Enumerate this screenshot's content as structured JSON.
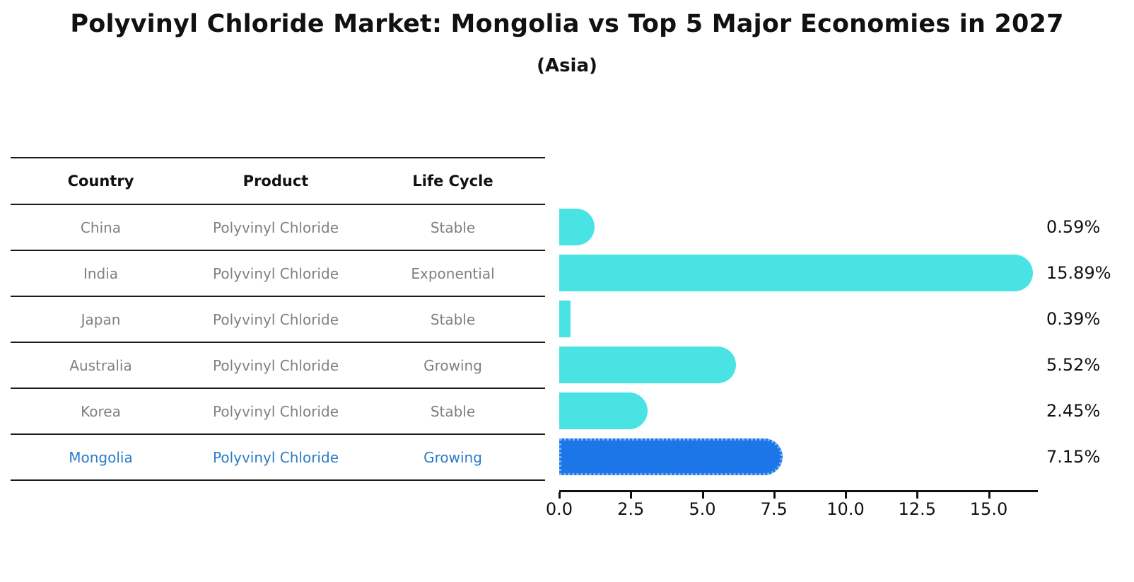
{
  "title": "Polyvinyl Chloride Market: Mongolia vs Top 5 Major Economies in 2027",
  "subtitle": "(Asia)",
  "table": {
    "headers": [
      "Country",
      "Product",
      "Life Cycle"
    ],
    "rows": [
      {
        "country": "China",
        "product": "Polyvinyl Chloride",
        "life_cycle": "Stable",
        "highlight": false
      },
      {
        "country": "India",
        "product": "Polyvinyl Chloride",
        "life_cycle": "Exponential",
        "highlight": false
      },
      {
        "country": "Japan",
        "product": "Polyvinyl Chloride",
        "life_cycle": "Stable",
        "highlight": false
      },
      {
        "country": "Australia",
        "product": "Polyvinyl Chloride",
        "life_cycle": "Growing",
        "highlight": false
      },
      {
        "country": "Korea",
        "product": "Polyvinyl Chloride",
        "life_cycle": "Stable",
        "highlight": false
      },
      {
        "country": "Mongolia",
        "product": "Polyvinyl Chloride",
        "life_cycle": "Growing",
        "highlight": true
      }
    ]
  },
  "chart_data": {
    "type": "bar",
    "orientation": "horizontal",
    "categories": [
      "China",
      "India",
      "Japan",
      "Australia",
      "Korea",
      "Mongolia"
    ],
    "values": [
      0.59,
      15.89,
      0.39,
      5.52,
      2.45,
      7.15
    ],
    "labels": [
      "0.59%",
      "15.89%",
      "0.39%",
      "5.52%",
      "2.45%",
      "7.15%"
    ],
    "highlight_index": 5,
    "x_ticks": [
      "0.0",
      "2.5",
      "5.0",
      "7.5",
      "10.0",
      "12.5",
      "15.0"
    ],
    "x_tick_values": [
      0,
      2.5,
      5,
      7.5,
      10,
      12.5,
      15
    ],
    "xlim": [
      0,
      16.7
    ],
    "ylabel": "",
    "xlabel": "",
    "grid": false,
    "legend": "none",
    "bar_color": "#49E3E3",
    "highlight_bar_color": "#1C76E8",
    "highlight_edge_color": "#77B5F5",
    "highlight_text_color": "#2B7BC9",
    "row_text_color": "#808080",
    "axis_color": "#111111"
  }
}
